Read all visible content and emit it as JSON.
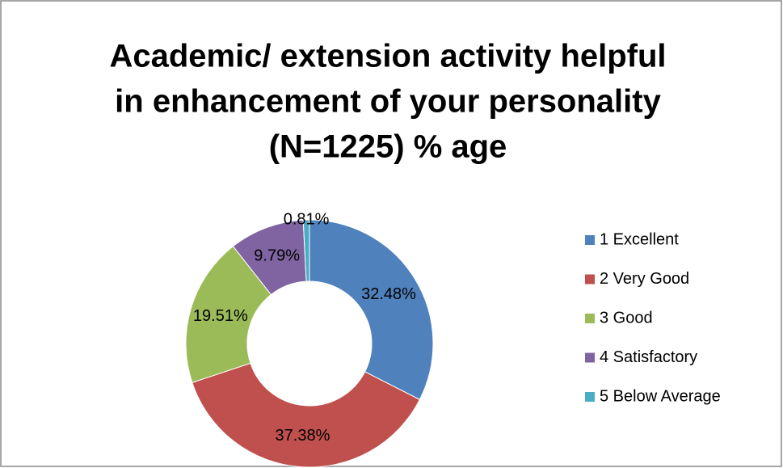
{
  "chart_data": {
    "type": "donut",
    "title": [
      "Academic/ extension activity helpful",
      "in enhancement of your personality",
      "(N=1225) % age"
    ],
    "categories": [
      "1 Excellent",
      "2 Very Good",
      "3 Good",
      "4 Satisfactory",
      "5 Below Average"
    ],
    "values": [
      32.48,
      37.38,
      19.51,
      9.79,
      0.81
    ],
    "value_labels": [
      "32.48%",
      "37.38%",
      "19.51%",
      "9.79%",
      "0.81%"
    ],
    "colors": [
      "#4f81bd",
      "#c0504d",
      "#9bbb59",
      "#8064a2",
      "#4bacc6"
    ],
    "legend": "right"
  }
}
